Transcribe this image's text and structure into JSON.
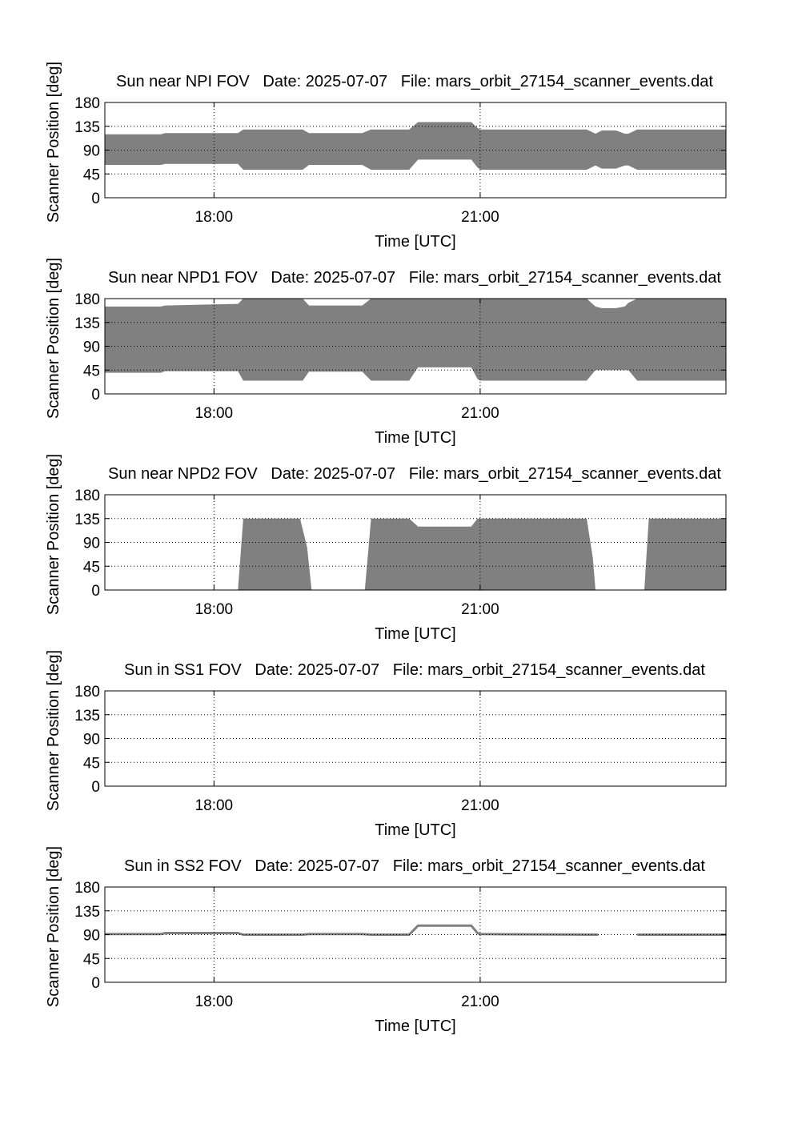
{
  "figure": {
    "background": "#ffffff",
    "fill_color": "#808080",
    "line_color": "#808080"
  },
  "chart_data": [
    {
      "id": "npi",
      "type": "area",
      "title": "Sun near NPI FOV   Date: 2025-07-07   File: mars_orbit_27154_scanner_events.dat",
      "xlabel": "Time [UTC]",
      "ylabel": "Scanner Position [deg]",
      "xlim": [
        16.77,
        23.77
      ],
      "ylim": [
        0,
        180
      ],
      "yticks": [
        0,
        45,
        90,
        135,
        180
      ],
      "xticks": [
        18,
        21
      ],
      "xtick_labels": [
        "18:00",
        "21:00"
      ],
      "grid": true,
      "bands": [
        {
          "x": [
            16.77,
            17.4,
            17.45,
            18.27,
            18.33,
            19.0,
            19.07,
            19.67,
            19.77,
            20.2,
            20.3,
            20.67,
            20.73,
            20.9,
            20.97,
            21.0,
            22.2,
            22.3,
            22.37,
            22.53,
            22.63,
            22.67,
            22.77,
            23.77
          ],
          "lower": [
            62,
            62,
            64,
            64,
            53,
            53,
            62,
            62,
            53,
            53,
            72,
            72,
            72,
            72,
            57,
            53,
            53,
            61,
            55,
            55,
            61,
            61,
            53,
            53
          ],
          "upper": [
            120,
            120,
            122,
            122,
            129,
            129,
            122,
            122,
            129,
            129,
            143,
            143,
            143,
            143,
            132,
            129,
            129,
            121,
            127,
            127,
            121,
            121,
            129,
            129
          ]
        }
      ]
    },
    {
      "id": "npd1",
      "type": "area",
      "title": "Sun near NPD1 FOV   Date: 2025-07-07   File: mars_orbit_27154_scanner_events.dat",
      "xlabel": "Time [UTC]",
      "ylabel": "Scanner Position [deg]",
      "xlim": [
        16.77,
        23.77
      ],
      "ylim": [
        0,
        180
      ],
      "yticks": [
        0,
        45,
        90,
        135,
        180
      ],
      "xticks": [
        18,
        21
      ],
      "xtick_labels": [
        "18:00",
        "21:00"
      ],
      "grid": true,
      "bands": [
        {
          "x": [
            16.77,
            17.4,
            17.45,
            18.27,
            18.33,
            19.0,
            19.07,
            19.67,
            19.77,
            20.2,
            20.3,
            20.9,
            20.97,
            21.0,
            22.2,
            22.3,
            22.37,
            22.53,
            22.63,
            22.67,
            22.77,
            23.77
          ],
          "lower": [
            40,
            40,
            43,
            43,
            25,
            25,
            42,
            42,
            25,
            25,
            50,
            50,
            28,
            25,
            25,
            45,
            45,
            45,
            45,
            45,
            25,
            25
          ],
          "upper": [
            165,
            165,
            167,
            170,
            180,
            180,
            167,
            167,
            180,
            180,
            180,
            180,
            180,
            180,
            180,
            165,
            162,
            162,
            165,
            172,
            180,
            180
          ]
        }
      ]
    },
    {
      "id": "npd2",
      "type": "area",
      "title": "Sun near NPD2 FOV   Date: 2025-07-07   File: mars_orbit_27154_scanner_events.dat",
      "xlabel": "Time [UTC]",
      "ylabel": "Scanner Position [deg]",
      "xlim": [
        16.77,
        23.77
      ],
      "ylim": [
        0,
        180
      ],
      "yticks": [
        0,
        45,
        90,
        135,
        180
      ],
      "xticks": [
        18,
        21
      ],
      "xtick_labels": [
        "18:00",
        "21:00"
      ],
      "grid": true,
      "bands": [
        {
          "x": [
            18.27,
            18.33,
            18.97,
            19.05,
            19.1
          ],
          "lower": [
            0,
            0,
            0,
            0,
            0
          ],
          "upper": [
            0,
            135,
            135,
            80,
            0
          ]
        },
        {
          "x": [
            19.7,
            19.77,
            20.2,
            20.3,
            20.9,
            20.97,
            22.2,
            22.27,
            22.3
          ],
          "lower": [
            0,
            0,
            0,
            0,
            0,
            0,
            0,
            0,
            0
          ],
          "upper": [
            0,
            135,
            135,
            120,
            120,
            135,
            135,
            60,
            0
          ]
        },
        {
          "x": [
            22.85,
            22.9,
            23.77
          ],
          "lower": [
            0,
            0,
            0
          ],
          "upper": [
            0,
            135,
            135
          ]
        }
      ]
    },
    {
      "id": "ss1",
      "type": "area",
      "title": "Sun in SS1 FOV   Date: 2025-07-07   File: mars_orbit_27154_scanner_events.dat",
      "xlabel": "Time [UTC]",
      "ylabel": "Scanner Position [deg]",
      "xlim": [
        16.77,
        23.77
      ],
      "ylim": [
        0,
        180
      ],
      "yticks": [
        0,
        45,
        90,
        135,
        180
      ],
      "xticks": [
        18,
        21
      ],
      "xtick_labels": [
        "18:00",
        "21:00"
      ],
      "grid": true,
      "bands": []
    },
    {
      "id": "ss2",
      "type": "line",
      "title": "Sun in SS2 FOV   Date: 2025-07-07   File: mars_orbit_27154_scanner_events.dat",
      "xlabel": "Time [UTC]",
      "ylabel": "Scanner Position [deg]",
      "xlim": [
        16.77,
        23.77
      ],
      "ylim": [
        0,
        180
      ],
      "yticks": [
        0,
        45,
        90,
        135,
        180
      ],
      "xticks": [
        18,
        21
      ],
      "xtick_labels": [
        "18:00",
        "21:00"
      ],
      "grid": true,
      "lines": [
        {
          "x": [
            16.77,
            17.4,
            17.45,
            18.27,
            18.33,
            19.0,
            19.07,
            19.67,
            19.77,
            20.2,
            20.3,
            20.9,
            20.97,
            21.0,
            22.33
          ],
          "y": [
            91,
            91,
            93,
            93,
            90,
            90,
            91,
            91,
            90,
            90,
            107,
            107,
            93,
            91,
            90
          ]
        },
        {
          "x": [
            22.77,
            23.77
          ],
          "y": [
            90,
            90
          ]
        }
      ]
    }
  ]
}
